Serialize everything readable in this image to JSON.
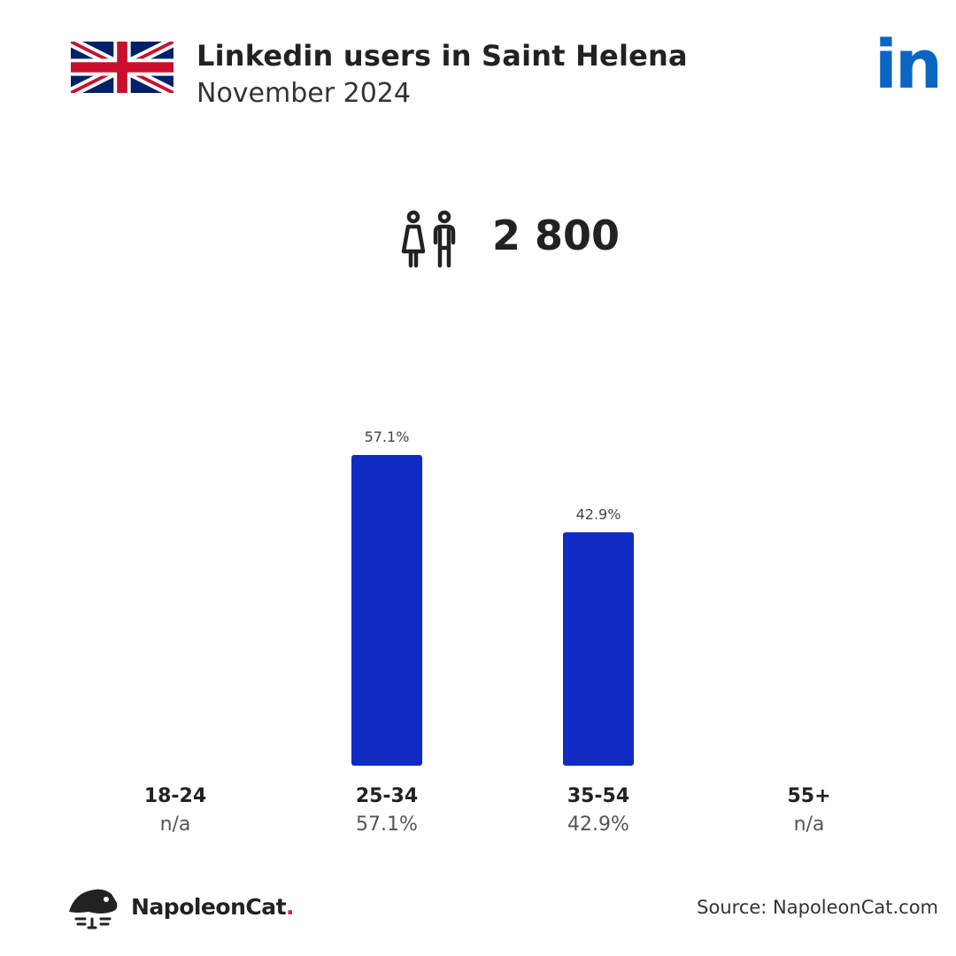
{
  "header": {
    "title": "Linkedin users in Saint Helena",
    "subtitle": "November 2024",
    "flag_icon": "uk-flag-icon",
    "brand_icon": "linkedin-icon",
    "brand_color": "#0a66c2"
  },
  "summary": {
    "icon": "users-icon",
    "total_users": "2 800"
  },
  "chart_data": {
    "type": "bar",
    "categories": [
      "18-24",
      "25-34",
      "35-54",
      "55+"
    ],
    "values": [
      null,
      57.1,
      42.9,
      null
    ],
    "value_labels": [
      "n/a",
      "57.1%",
      "42.9%",
      "n/a"
    ],
    "bar_labels": [
      "",
      "57.1%",
      "42.9%",
      ""
    ],
    "ylim": [
      0,
      57.1
    ],
    "bar_color": "#0f2bc4",
    "grid": false
  },
  "footer": {
    "brand_name": "NapoleonCat",
    "brand_dot": ".",
    "source": "Source: NapoleonCat.com",
    "logo_icon": "napoleoncat-logo-icon"
  }
}
